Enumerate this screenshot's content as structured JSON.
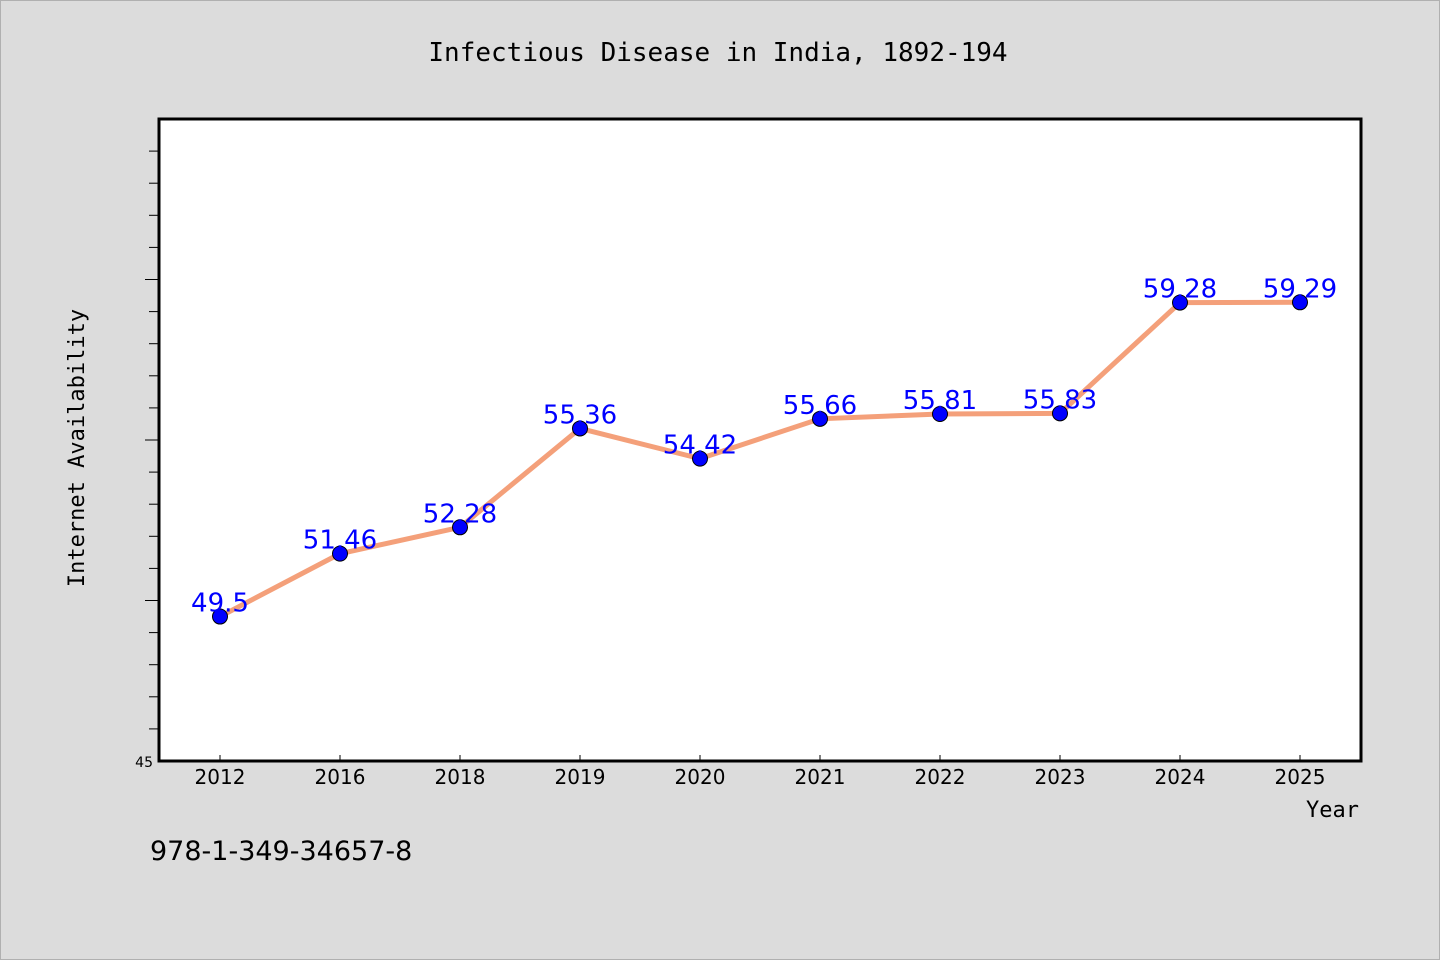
{
  "chart_data": {
    "type": "line",
    "title": "Infectious Disease in India, 1892-194",
    "xlabel": "Year",
    "ylabel": "Internet Availability",
    "categories": [
      "2012",
      "2016",
      "2018",
      "2019",
      "2020",
      "2021",
      "2022",
      "2023",
      "2024",
      "2025"
    ],
    "series": [
      {
        "values": [
          49.5,
          51.46,
          52.28,
          55.36,
          54.42,
          55.66,
          55.81,
          55.83,
          59.28,
          59.29
        ],
        "labels": [
          "49.5",
          "51.46",
          "52.28",
          "55.36",
          "54.42",
          "55.66",
          "55.81",
          "55.83",
          "59.28",
          "59.29"
        ],
        "line_color": "#f4a07a",
        "marker_color": "#0000ff"
      }
    ],
    "ylim": [
      45,
      65
    ],
    "yticks_labeled": [
      "45"
    ],
    "grid": false,
    "legend": "none",
    "colors": {
      "background": "#dcdcdc",
      "plot_background": "#ffffff",
      "line": "#f4a07a",
      "marker": "#0000ff",
      "data_label": "#0000ff"
    }
  },
  "footer": {
    "isbn": "978-1-349-34657-8"
  }
}
